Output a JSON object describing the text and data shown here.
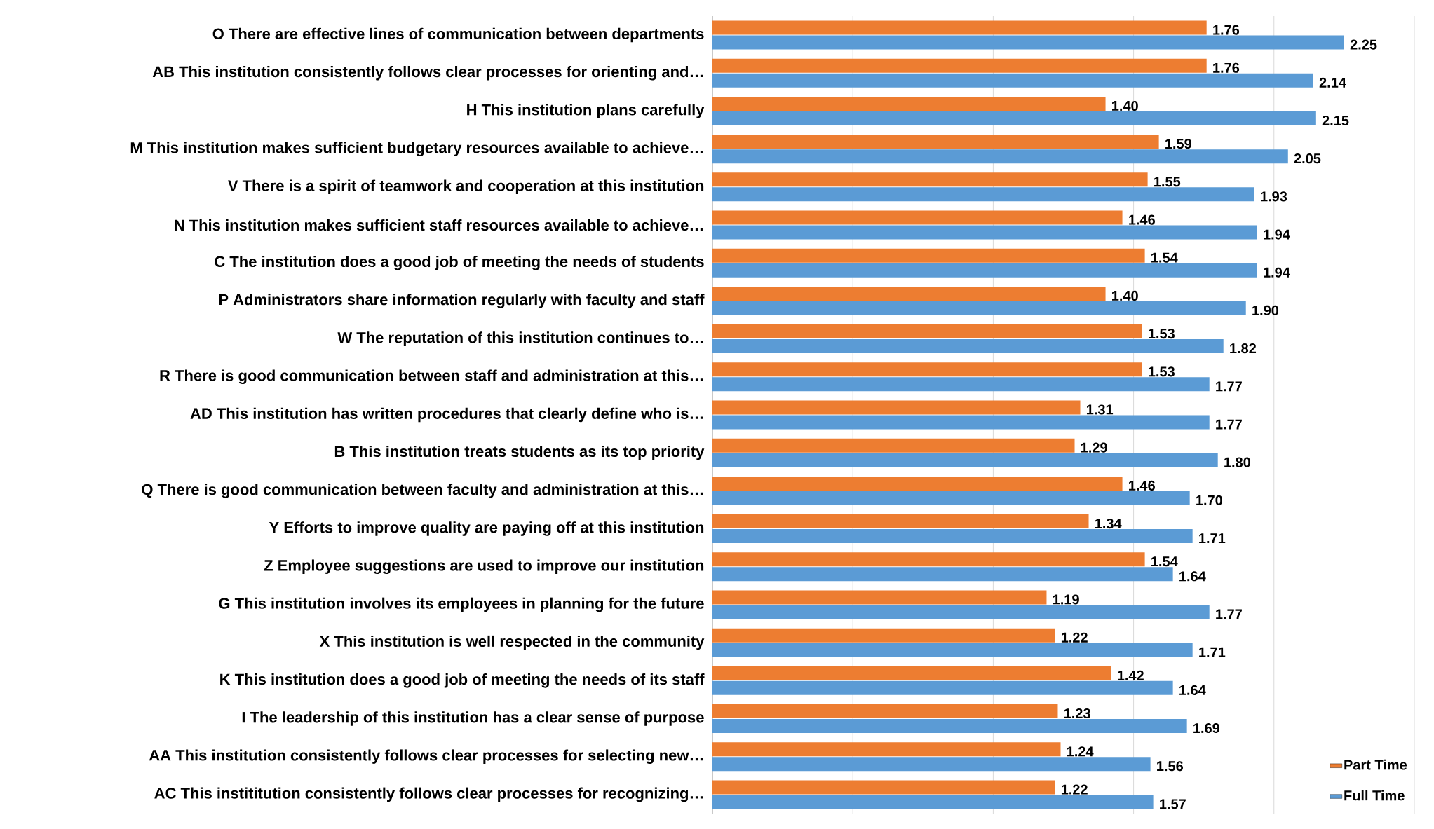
{
  "chart_data": {
    "type": "bar",
    "orientation": "horizontal",
    "categories": [
      "O There are effective lines of communication between departments",
      "AB This institution consistently follows clear processes for orienting and…",
      "H This institution plans carefully",
      "M This institution makes sufficient budgetary resources available to achieve…",
      "V There is a spirit of teamwork and cooperation at this institution",
      "N This institution makes sufficient staff resources available to achieve…",
      "C The institution does a good job of meeting the needs of students",
      "P Administrators share information regularly with faculty and staff",
      "W The reputation of this institution continues to…",
      "R There is good communication between staff and administration at this…",
      "AD This institution has written procedures that clearly define who is…",
      "B This institution treats students as its top priority",
      "Q There is good communication between faculty and administration at this…",
      "Y Efforts to improve quality are paying off at this institution",
      "Z Employee suggestions are used to improve our institution",
      "G This institution involves its employees in planning for the future",
      "X This institution is well respected in the community",
      "K This institution does a good job of meeting the needs of its staff",
      "I The leadership of this institution has a clear sense of purpose",
      "AA This institution consistently follows clear processes for selecting new…",
      "AC This instititution consistently follows clear processes for recognizing…"
    ],
    "series": [
      {
        "name": "Part Time",
        "color": "#ed7d31",
        "values": [
          1.76,
          1.76,
          1.4,
          1.59,
          1.55,
          1.46,
          1.54,
          1.4,
          1.53,
          1.53,
          1.31,
          1.29,
          1.46,
          1.34,
          1.54,
          1.19,
          1.22,
          1.42,
          1.23,
          1.24,
          1.22
        ],
        "value_labels": [
          "1.76",
          "1.76",
          "1.40",
          "1.59",
          "1.55",
          "1.46",
          "1.54",
          "1.40",
          "1.53",
          "1.53",
          "1.31",
          "1.29",
          "1.46",
          "1.34",
          "1.54",
          "1.19",
          "1.22",
          "1.42",
          "1.23",
          "1.24",
          "1.22"
        ]
      },
      {
        "name": "Full Time",
        "color": "#5b9bd5",
        "values": [
          2.25,
          2.14,
          2.15,
          2.05,
          1.93,
          1.94,
          1.94,
          1.9,
          1.82,
          1.77,
          1.77,
          1.8,
          1.7,
          1.71,
          1.64,
          1.77,
          1.71,
          1.64,
          1.69,
          1.56,
          1.57
        ],
        "value_labels": [
          "2.25",
          "2.14",
          "2.15",
          "2.05",
          "1.93",
          "1.94",
          "1.94",
          "1.90",
          "1.82",
          "1.77",
          "1.77",
          "1.80",
          "1.70",
          "1.71",
          "1.64",
          "1.77",
          "1.71",
          "1.64",
          "1.69",
          "1.56",
          "1.57"
        ]
      }
    ],
    "xlim": [
      0,
      2.5
    ],
    "xticks": [
      {
        "value": 0,
        "label": null
      },
      {
        "value": 0.5,
        "label": null
      },
      {
        "value": 1,
        "label": null
      },
      {
        "value": 1.5,
        "label": null
      },
      {
        "value": 2,
        "label": null
      },
      {
        "value": 2.5,
        "label": null
      }
    ],
    "grid": "x",
    "legend": "bottom right",
    "tick_labels": "y"
  }
}
